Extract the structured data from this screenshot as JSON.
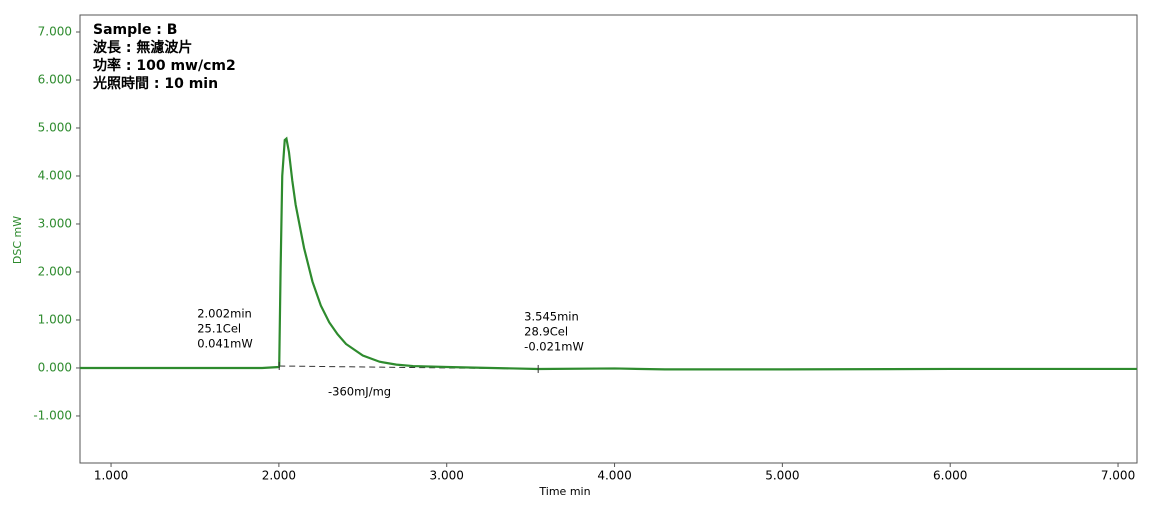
{
  "chart_data": {
    "type": "line",
    "info": [
      "Sample : B",
      "波長 : 無濾波片",
      "功率 : 100 mw/cm2",
      "光照時間 : 10 min"
    ],
    "xlabel": "Time min",
    "ylabel": "DSC mW",
    "color": "#2e8b2e",
    "x": [
      0.815,
      1.9,
      2.0,
      2.002,
      2.01,
      2.02,
      2.035,
      2.045,
      2.06,
      2.08,
      2.1,
      2.15,
      2.2,
      2.25,
      2.3,
      2.35,
      2.4,
      2.5,
      2.6,
      2.7,
      2.8,
      3.0,
      3.545,
      4.0,
      4.3,
      5.0,
      6.0,
      7.113
    ],
    "values": [
      0.0,
      0.0,
      0.02,
      0.041,
      2.0,
      4.0,
      4.75,
      4.78,
      4.5,
      3.9,
      3.4,
      2.5,
      1.8,
      1.3,
      0.95,
      0.7,
      0.5,
      0.26,
      0.13,
      0.07,
      0.04,
      0.02,
      -0.021,
      -0.01,
      -0.03,
      -0.03,
      -0.02,
      -0.02
    ],
    "xlim": [
      0.815,
      7.113
    ],
    "ylim": [
      -1.98,
      7.354
    ],
    "xticks": [
      {
        "value": 1,
        "label": "1.000"
      },
      {
        "value": 2,
        "label": "2.000"
      },
      {
        "value": 3,
        "label": "3.000"
      },
      {
        "value": 4,
        "label": "4.000"
      },
      {
        "value": 5,
        "label": "5.000"
      },
      {
        "value": 6,
        "label": "6.000"
      },
      {
        "value": 7,
        "label": "7.000"
      }
    ],
    "yticks": [
      {
        "value": -1,
        "label": "-1.000"
      },
      {
        "value": 0,
        "label": "0.000"
      },
      {
        "value": 1,
        "label": "1.000"
      },
      {
        "value": 2,
        "label": "2.000"
      },
      {
        "value": 3,
        "label": "3.000"
      },
      {
        "value": 4,
        "label": "4.000"
      },
      {
        "value": 5,
        "label": "5.000"
      },
      {
        "value": 6,
        "label": "6.000"
      },
      {
        "value": 7,
        "label": "7.000"
      }
    ],
    "annotations": [
      {
        "x": 2.002,
        "y": 0.041,
        "text": [
          "2.002min",
          "25.1Cel",
          "0.041mW"
        ]
      },
      {
        "x": 3.545,
        "y": -0.021,
        "text": [
          "3.545min",
          "28.9Cel",
          "-0.021mW"
        ]
      }
    ],
    "area_label": "-360mJ/mg"
  }
}
